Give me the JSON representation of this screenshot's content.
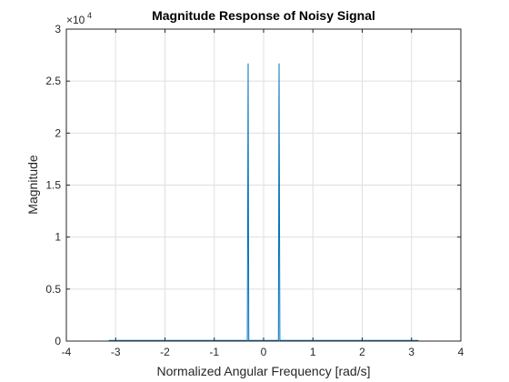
{
  "chart_data": {
    "type": "line",
    "title": "Magnitude Response of Noisy Signal",
    "xlabel": "Normalized Angular Frequency [rad/s]",
    "ylabel": "Magnitude",
    "xlim": [
      -4,
      4
    ],
    "ylim": [
      0,
      30000
    ],
    "xticks": [
      -4,
      -3,
      -2,
      -1,
      0,
      1,
      2,
      3,
      4
    ],
    "xtick_labels": [
      "-4",
      "-3",
      "-2",
      "-1",
      "0",
      "1",
      "2",
      "3",
      "4"
    ],
    "yticks": [
      0,
      5000,
      10000,
      15000,
      20000,
      25000,
      30000
    ],
    "ytick_labels": [
      "0",
      "0.5",
      "1",
      "1.5",
      "2",
      "2.5",
      "3"
    ],
    "y_exponent_base": "×10",
    "y_exponent": "4",
    "grid": true,
    "series": [
      {
        "color": "#0072BD",
        "x": [
          -3.1416,
          -0.33,
          -0.314,
          -0.3,
          0.3,
          0.314,
          0.33,
          3.1416
        ],
        "y": [
          60,
          60,
          26700,
          60,
          60,
          26700,
          60,
          60
        ]
      }
    ]
  }
}
